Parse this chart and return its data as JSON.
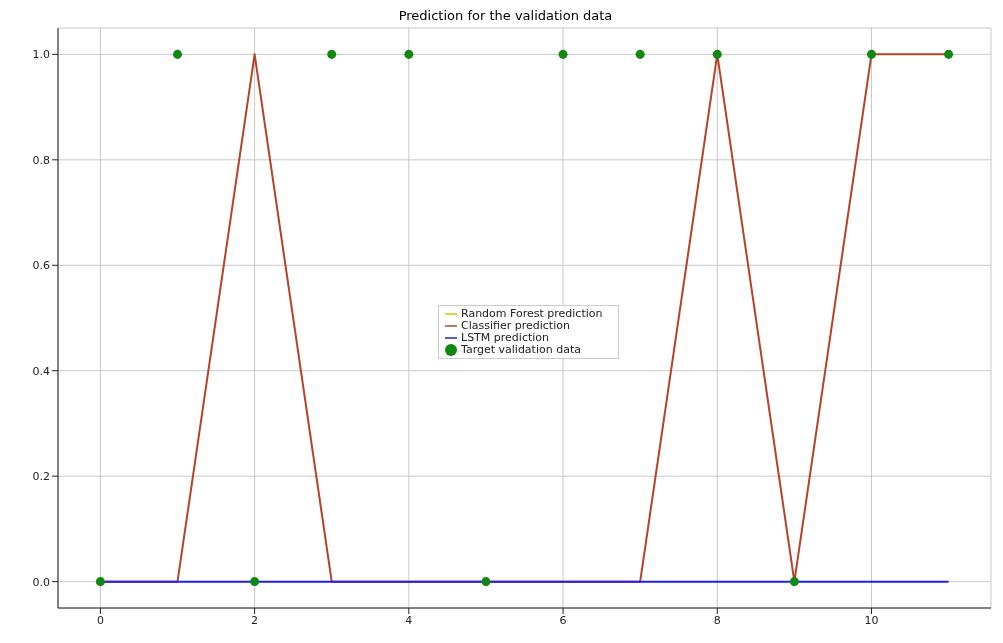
{
  "chart_data": {
    "type": "line",
    "title": "Prediction for the validation data",
    "x": [
      0,
      1,
      2,
      3,
      4,
      5,
      6,
      7,
      8,
      9,
      10,
      11
    ],
    "series": [
      {
        "name": "Random Forest prediction",
        "color": "#c8c800",
        "values": [
          null,
          null,
          null,
          null,
          null,
          null,
          null,
          null,
          null,
          null,
          null,
          null
        ]
      },
      {
        "name": "Classifier prediction",
        "color": "#b5432a",
        "values": [
          0,
          0,
          1,
          0,
          0,
          0,
          0,
          0,
          1,
          0,
          1,
          1
        ]
      },
      {
        "name": "LSTM prediction",
        "color": "#1f1fe6",
        "values": [
          0,
          0,
          0,
          0,
          0,
          0,
          0,
          0,
          0,
          0,
          0,
          0
        ]
      },
      {
        "name": "Target validation data",
        "type": "scatter",
        "color": "#118811",
        "marker": "circle",
        "values": [
          0,
          1,
          0,
          1,
          1,
          0,
          1,
          1,
          1,
          0,
          1,
          1
        ]
      }
    ],
    "xlim": [
      -0.55,
      11.55
    ],
    "xticks": [
      0,
      2,
      4,
      6,
      8,
      10
    ],
    "ylim": [
      -0.05,
      1.05
    ],
    "yticks": [
      {
        "value": 0,
        "label": "0.0"
      },
      0.2,
      0.4,
      0.6,
      0.8,
      {
        "value": 1,
        "label": "1.0"
      }
    ],
    "grid": true,
    "legend": "center"
  }
}
